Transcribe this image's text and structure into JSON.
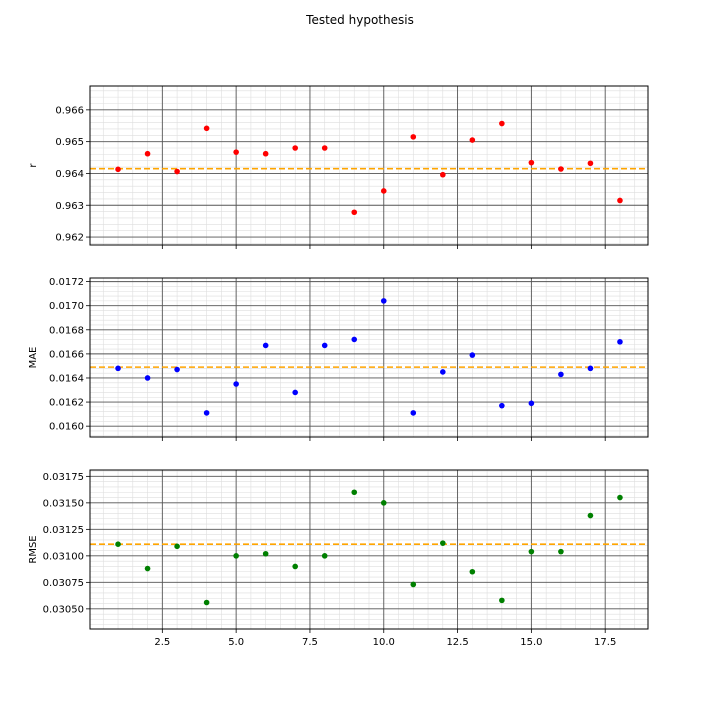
{
  "title": "Tested hypothesis",
  "x": [
    1,
    2,
    3,
    4,
    5,
    6,
    7,
    8,
    9,
    10,
    11,
    12,
    13,
    14,
    15,
    16,
    17,
    18
  ],
  "xlim": [
    0.05,
    18.95
  ],
  "xticks": [
    2.5,
    5.0,
    7.5,
    10.0,
    12.5,
    15.0,
    17.5
  ],
  "xtick_labels": [
    "2.5",
    "5.0",
    "7.5",
    "10.0",
    "12.5",
    "15.0",
    "17.5"
  ],
  "grid": true,
  "chart_data": [
    {
      "type": "scatter",
      "ylabel": "r",
      "color": "#ff0000",
      "ylim": [
        0.96175,
        0.96675
      ],
      "yticks": [
        0.962,
        0.963,
        0.964,
        0.965,
        0.966
      ],
      "ytick_labels": [
        "0.962",
        "0.963",
        "0.964",
        "0.965",
        "0.966"
      ],
      "ref_line": 0.96415,
      "ref_color": "#ffa500",
      "values": [
        0.96413,
        0.96462,
        0.96406,
        0.96542,
        0.96467,
        0.96462,
        0.9648,
        0.9648,
        0.96278,
        0.96345,
        0.96515,
        0.96396,
        0.96505,
        0.96557,
        0.96434,
        0.96414,
        0.96432,
        0.96315
      ]
    },
    {
      "type": "scatter",
      "ylabel": "MAE",
      "color": "#0000ff",
      "ylim": [
        0.01591,
        0.01723
      ],
      "yticks": [
        0.016,
        0.0162,
        0.0164,
        0.0166,
        0.0168,
        0.017,
        0.0172
      ],
      "ytick_labels": [
        "0.0160",
        "0.0162",
        "0.0164",
        "0.0166",
        "0.0168",
        "0.0170",
        "0.0172"
      ],
      "ref_line": 0.01649,
      "ref_color": "#ffa500",
      "values": [
        0.01648,
        0.0164,
        0.01647,
        0.01611,
        0.01635,
        0.01667,
        0.01628,
        0.01667,
        0.01672,
        0.01704,
        0.01611,
        0.01645,
        0.01659,
        0.01617,
        0.01619,
        0.01643,
        0.01648,
        0.0167
      ]
    },
    {
      "type": "scatter",
      "ylabel": "RMSE",
      "color": "#008000",
      "ylim": [
        0.03031,
        0.03181
      ],
      "yticks": [
        0.0305,
        0.03075,
        0.031,
        0.03125,
        0.0315,
        0.03175
      ],
      "ytick_labels": [
        "0.03050",
        "0.03075",
        "0.03100",
        "0.03125",
        "0.03150",
        "0.03175"
      ],
      "ref_line": 0.03111,
      "ref_color": "#ffa500",
      "values": [
        0.03111,
        0.03088,
        0.03109,
        0.03056,
        0.031,
        0.03102,
        0.0309,
        0.031,
        0.0316,
        0.0315,
        0.03073,
        0.03112,
        0.03085,
        0.03058,
        0.03104,
        0.03104,
        0.03138,
        0.03155
      ]
    }
  ]
}
